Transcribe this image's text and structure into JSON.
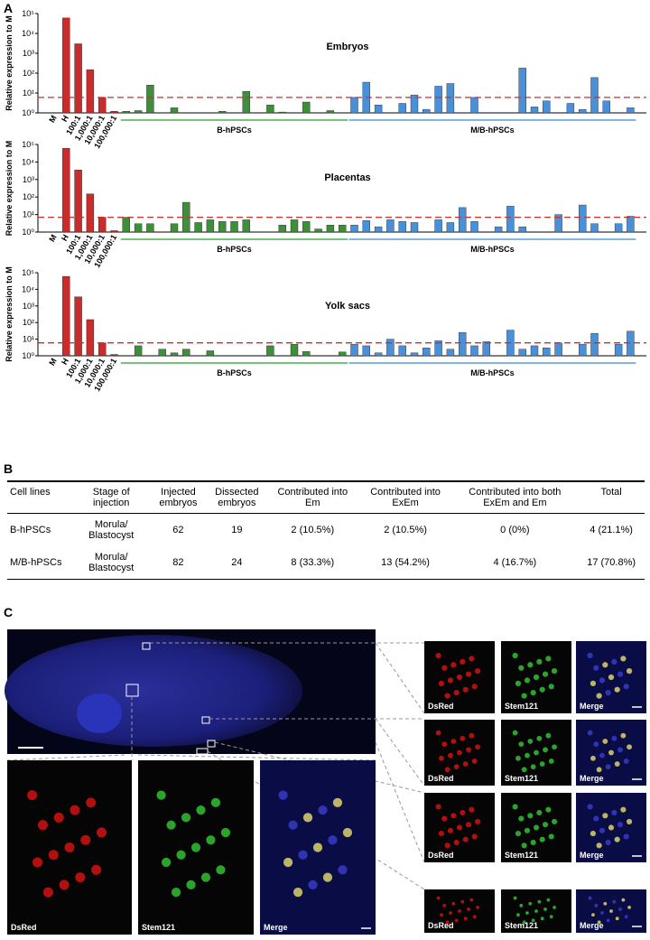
{
  "panel_labels": [
    "A",
    "B",
    "C"
  ],
  "chart_data": [
    {
      "type": "bar",
      "title": "Embryos",
      "ylabel": "Relative expression to M",
      "log": true,
      "ylim": [
        1,
        100000
      ],
      "yticks": [
        {
          "value": 1,
          "label": "10⁰"
        },
        {
          "value": 10,
          "label": "10¹"
        },
        {
          "value": 100,
          "label": "10²"
        },
        {
          "value": 1000,
          "label": "10³"
        },
        {
          "value": 10000,
          "label": "10⁴"
        },
        {
          "value": 100000,
          "label": "10⁵"
        }
      ],
      "threshold": 6,
      "threshold_color": "#c9302c",
      "controls": {
        "color": "#c62d2d",
        "categories": [
          "M",
          "H",
          "100:1",
          "1,000:1",
          "10,000:1",
          "100,000:1"
        ],
        "values": [
          1,
          60000,
          3000,
          150,
          6,
          1.2
        ]
      },
      "groups": [
        {
          "name": "B-hPSCs",
          "color": "#3f8f3a",
          "line_color": "#4caf50",
          "values": [
            1.2,
            1.3,
            25,
            1,
            1.8,
            1,
            1,
            1,
            1.2,
            1,
            12,
            1,
            2.5,
            1.1,
            1,
            3.5,
            1,
            1.3,
            1
          ]
        },
        {
          "name": "M/B-hPSCs",
          "color": "#4a90d9",
          "line_color": "#5b9bd5",
          "values": [
            6,
            35,
            2.5,
            1,
            3,
            8,
            1.5,
            22,
            30,
            1,
            6,
            1,
            1,
            1,
            180,
            2,
            4,
            1,
            3,
            1.5,
            60,
            4,
            1,
            1.8
          ]
        }
      ]
    },
    {
      "type": "bar",
      "title": "Placentas",
      "ylabel": "Relative expression to M",
      "log": true,
      "ylim": [
        1,
        100000
      ],
      "yticks": [
        {
          "value": 1,
          "label": "10⁰"
        },
        {
          "value": 10,
          "label": "10¹"
        },
        {
          "value": 100,
          "label": "10²"
        },
        {
          "value": 1000,
          "label": "10³"
        },
        {
          "value": 10000,
          "label": "10⁴"
        },
        {
          "value": 100000,
          "label": "10⁵"
        }
      ],
      "threshold": 7,
      "threshold_color": "#c9302c",
      "controls": {
        "color": "#c62d2d",
        "categories": [
          "M",
          "H",
          "100:1",
          "1,000:1",
          "10,000:1",
          "100,000:1"
        ],
        "values": [
          1,
          60000,
          3500,
          150,
          7,
          1.2
        ]
      },
      "groups": [
        {
          "name": "B-hPSCs",
          "color": "#3f8f3a",
          "line_color": "#4caf50",
          "values": [
            7,
            3,
            3,
            1,
            3,
            50,
            3.5,
            5,
            4,
            4,
            5,
            1,
            1,
            2.5,
            5,
            4,
            1.5,
            2.5,
            2.5
          ]
        },
        {
          "name": "M/B-hPSCs",
          "color": "#4a90d9",
          "line_color": "#5b9bd5",
          "values": [
            2.5,
            4.5,
            2,
            5,
            4,
            3.5,
            1,
            5,
            3.5,
            25,
            4,
            1,
            2,
            30,
            2,
            1,
            1,
            10,
            1,
            35,
            3,
            1,
            3,
            8
          ]
        }
      ]
    },
    {
      "type": "bar",
      "title": "Yolk sacs",
      "ylabel": "Relative expression to M",
      "log": true,
      "ylim": [
        1,
        100000
      ],
      "yticks": [
        {
          "value": 1,
          "label": "10⁰"
        },
        {
          "value": 10,
          "label": "10¹"
        },
        {
          "value": 100,
          "label": "10²"
        },
        {
          "value": 1000,
          "label": "10³"
        },
        {
          "value": 10000,
          "label": "10⁴"
        },
        {
          "value": 100000,
          "label": "10⁵"
        }
      ],
      "threshold": 6,
      "threshold_color": "#c9302c",
      "controls": {
        "color": "#c62d2d",
        "categories": [
          "M",
          "H",
          "100:1",
          "1,000:1",
          "10,000:1",
          "100,000:1"
        ],
        "values": [
          1,
          60000,
          3500,
          150,
          6,
          1.2
        ]
      },
      "groups": [
        {
          "name": "B-hPSCs",
          "color": "#3f8f3a",
          "line_color": "#4caf50",
          "values": [
            1,
            4,
            1,
            2.5,
            1.5,
            2.5,
            1,
            2,
            1,
            1,
            1,
            1,
            4,
            1,
            5,
            1.8,
            1,
            1,
            1.7
          ]
        },
        {
          "name": "M/B-hPSCs",
          "color": "#4a90d9",
          "line_color": "#5b9bd5",
          "values": [
            5,
            4,
            1.5,
            10,
            4,
            1.5,
            3,
            8,
            2.5,
            25,
            4,
            7,
            1,
            35,
            2.5,
            4,
            3,
            6,
            1,
            5,
            22,
            1,
            5,
            30
          ]
        }
      ]
    }
  ],
  "table": {
    "header": [
      "Cell lines",
      "Stage of injection",
      "Injected embryos",
      "Dissected embryos",
      "Contributed into Em",
      "Contributed into ExEm",
      "Contributed into both ExEm and Em",
      "Total"
    ],
    "rows": [
      [
        "B-hPSCs",
        "Morula/ Blastocyst",
        "62",
        "19",
        "2 (10.5%)",
        "2 (10.5%)",
        "0 (0%)",
        "4 (21.1%)"
      ],
      [
        "M/B-hPSCs",
        "Morula/ Blastocyst",
        "82",
        "24",
        "8 (33.3%)",
        "13 (54.2%)",
        "4 (16.7%)",
        "17 (70.8%)"
      ]
    ]
  },
  "images": {
    "panels": [
      [
        "DsRed",
        "Stem121",
        "Merge"
      ],
      [
        "DsRed",
        "Stem121",
        "Merge"
      ],
      [
        "DsRed",
        "Stem121",
        "Merge"
      ],
      [
        "DsRed",
        "Stem121",
        "Merge"
      ],
      [
        "DsRed",
        "Stem121",
        "Merge"
      ]
    ]
  }
}
